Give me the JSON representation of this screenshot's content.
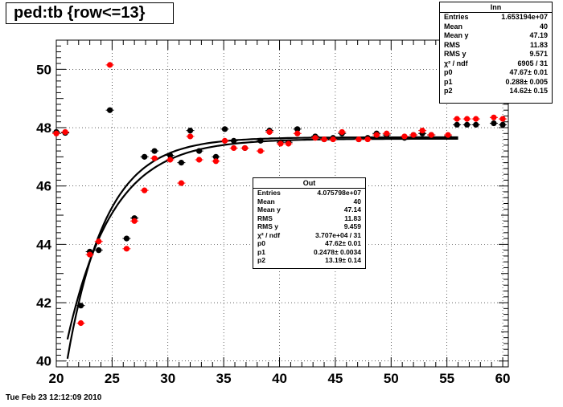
{
  "title": "ped:tb {row<=13}",
  "timestamp": "Tue Feb 23 12:12:09 2010",
  "stats_inn": {
    "name": "Inn",
    "rows": [
      {
        "label": "Entries",
        "value": "1.653194e+07"
      },
      {
        "label": "Mean",
        "value": "40"
      },
      {
        "label": "Mean y",
        "value": "47.19"
      },
      {
        "label": "RMS",
        "value": "11.83"
      },
      {
        "label": "RMS y",
        "value": "9.571"
      },
      {
        "label": "χ² / ndf",
        "value": "6905 / 31"
      },
      {
        "label": "p0",
        "value": "47.67± 0.01"
      },
      {
        "label": "p1",
        "value": "0.288± 0.005"
      },
      {
        "label": "p2",
        "value": "14.62± 0.15"
      }
    ]
  },
  "stats_out": {
    "name": "Out",
    "rows": [
      {
        "label": "Entries",
        "value": "4.075798e+07"
      },
      {
        "label": "Mean",
        "value": "40"
      },
      {
        "label": "Mean y",
        "value": "47.14"
      },
      {
        "label": "RMS",
        "value": "11.83"
      },
      {
        "label": "RMS y",
        "value": "9.459"
      },
      {
        "label": "χ² / ndf",
        "value": "3.707e+04 / 31"
      },
      {
        "label": "p0",
        "value": "47.62± 0.01"
      },
      {
        "label": "p1",
        "value": "0.2478± 0.0034"
      },
      {
        "label": "p2",
        "value": "13.19± 0.14"
      }
    ]
  },
  "chart_data": {
    "type": "scatter",
    "title": "ped:tb {row<=13}",
    "xlabel": "",
    "ylabel": "",
    "xlim": [
      20,
      60.5
    ],
    "ylim": [
      39.8,
      51
    ],
    "xticks": [
      20,
      25,
      30,
      35,
      40,
      45,
      50,
      55,
      60
    ],
    "yticks": [
      40,
      42,
      44,
      46,
      48,
      50
    ],
    "grid": true,
    "series": [
      {
        "name": "Inn",
        "color": "#000000",
        "points": [
          [
            20,
            47.85
          ],
          [
            20.8,
            47.82
          ],
          [
            22.2,
            41.9
          ],
          [
            23,
            43.75
          ],
          [
            23.8,
            43.8
          ],
          [
            24.8,
            48.6
          ],
          [
            26.3,
            44.2
          ],
          [
            27,
            44.9
          ],
          [
            27.9,
            47
          ],
          [
            28.8,
            47.2
          ],
          [
            30.2,
            47.05
          ],
          [
            31.2,
            46.8
          ],
          [
            32,
            47.9
          ],
          [
            32.8,
            47.2
          ],
          [
            34.3,
            47
          ],
          [
            35.1,
            47.95
          ],
          [
            35.9,
            47.55
          ],
          [
            36.9,
            47.3
          ],
          [
            38.3,
            47.55
          ],
          [
            39.1,
            47.9
          ],
          [
            40.1,
            47.5
          ],
          [
            40.8,
            47.5
          ],
          [
            41.6,
            47.95
          ],
          [
            43.2,
            47.7
          ],
          [
            44,
            47.6
          ],
          [
            44.8,
            47.65
          ],
          [
            45.6,
            47.8
          ],
          [
            47.1,
            47.6
          ],
          [
            47.9,
            47.65
          ],
          [
            48.7,
            47.8
          ],
          [
            49.6,
            47.75
          ],
          [
            51.2,
            47.65
          ],
          [
            52,
            47.75
          ],
          [
            52.8,
            47.8
          ],
          [
            53.6,
            47.75
          ],
          [
            55.1,
            47.7
          ],
          [
            55.9,
            48.1
          ],
          [
            56.8,
            48.1
          ],
          [
            57.6,
            48.1
          ],
          [
            59.2,
            48.15
          ],
          [
            60,
            48.1
          ]
        ]
      },
      {
        "name": "Out",
        "color": "#ff0000",
        "points": [
          [
            20,
            47.8
          ],
          [
            20.8,
            47.85
          ],
          [
            22.2,
            41.3
          ],
          [
            23,
            43.65
          ],
          [
            23.8,
            44.1
          ],
          [
            24.8,
            50.15
          ],
          [
            26.3,
            43.85
          ],
          [
            27,
            44.8
          ],
          [
            27.9,
            45.85
          ],
          [
            28.8,
            46.95
          ],
          [
            30.2,
            46.9
          ],
          [
            31.2,
            46.1
          ],
          [
            32,
            47.7
          ],
          [
            32.8,
            46.9
          ],
          [
            34.3,
            46.85
          ],
          [
            35.1,
            47.55
          ],
          [
            35.9,
            47.3
          ],
          [
            36.9,
            47.3
          ],
          [
            38.3,
            47.2
          ],
          [
            39.1,
            47.85
          ],
          [
            40.1,
            47.45
          ],
          [
            40.8,
            47.45
          ],
          [
            41.6,
            47.8
          ],
          [
            43.2,
            47.65
          ],
          [
            44,
            47.6
          ],
          [
            44.8,
            47.6
          ],
          [
            45.6,
            47.85
          ],
          [
            47.1,
            47.6
          ],
          [
            47.9,
            47.6
          ],
          [
            48.7,
            47.75
          ],
          [
            49.6,
            47.8
          ],
          [
            51.2,
            47.7
          ],
          [
            52,
            47.75
          ],
          [
            52.8,
            47.9
          ],
          [
            53.6,
            47.75
          ],
          [
            55.1,
            47.75
          ],
          [
            55.9,
            48.3
          ],
          [
            56.8,
            48.3
          ],
          [
            57.6,
            48.3
          ],
          [
            59.2,
            48.35
          ],
          [
            60,
            48.3
          ]
        ]
      }
    ],
    "fits": [
      {
        "name": "Inn",
        "p0": 47.67,
        "p1": 0.288,
        "p2": 14.62,
        "x_range": [
          21,
          56
        ]
      },
      {
        "name": "Out",
        "p0": 47.62,
        "p1": 0.2478,
        "p2": 13.19,
        "x_range": [
          21,
          56
        ]
      }
    ]
  }
}
